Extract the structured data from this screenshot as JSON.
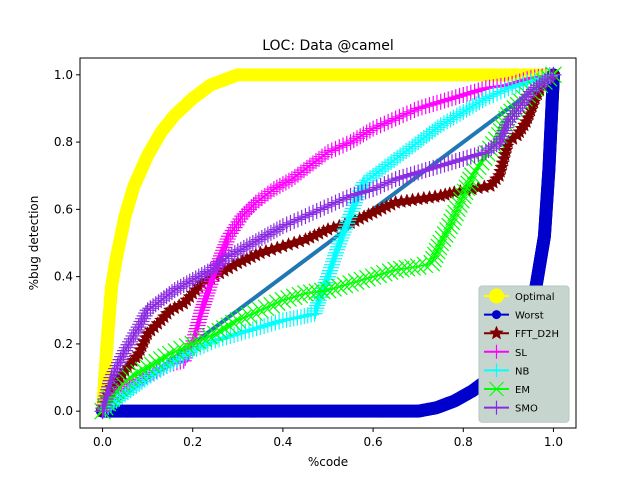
{
  "chart_data": {
    "type": "line",
    "title": "LOC: Data @camel",
    "xlabel": "%code",
    "ylabel": "%bug detection",
    "xlim": [
      -0.05,
      1.05
    ],
    "ylim": [
      -0.05,
      1.05
    ],
    "xticks": [
      0.0,
      0.2,
      0.4,
      0.6,
      0.8,
      1.0
    ],
    "xtick_labels": [
      "0.0",
      "0.2",
      "0.4",
      "0.6",
      "0.8",
      "1.0"
    ],
    "yticks": [
      0.0,
      0.2,
      0.4,
      0.6,
      0.8,
      1.0
    ],
    "ytick_labels": [
      "0.0",
      "0.2",
      "0.4",
      "0.6",
      "0.8",
      "1.0"
    ],
    "grid": false,
    "legend_position": "lower-right",
    "diagonal_line": {
      "color": "#1f77b4",
      "x": [
        0,
        1
      ],
      "y": [
        0,
        1
      ]
    },
    "series": [
      {
        "name": "Optimal",
        "color": "#ffff00",
        "marker": "circle",
        "x": [
          0,
          0.01,
          0.02,
          0.03,
          0.05,
          0.07,
          0.1,
          0.13,
          0.16,
          0.2,
          0.24,
          0.28,
          0.3,
          0.35,
          0.5,
          0.7,
          0.9,
          1.0
        ],
        "y": [
          0,
          0.2,
          0.37,
          0.45,
          0.58,
          0.67,
          0.76,
          0.83,
          0.88,
          0.93,
          0.97,
          0.99,
          1.0,
          1.0,
          1.0,
          1.0,
          1.0,
          1.0
        ]
      },
      {
        "name": "Worst",
        "color": "#0000cc",
        "marker": "circle",
        "x": [
          0,
          0.1,
          0.2,
          0.3,
          0.4,
          0.5,
          0.6,
          0.7,
          0.74,
          0.78,
          0.82,
          0.86,
          0.9,
          0.93,
          0.96,
          0.98,
          0.99,
          1.0
        ],
        "y": [
          0,
          0,
          0,
          0,
          0,
          0,
          0,
          0,
          0.01,
          0.03,
          0.06,
          0.1,
          0.16,
          0.24,
          0.36,
          0.52,
          0.72,
          1.0
        ]
      },
      {
        "name": "FFT_D2H",
        "color": "#800000",
        "marker": "star",
        "x": [
          0,
          0.02,
          0.05,
          0.08,
          0.1,
          0.13,
          0.15,
          0.18,
          0.2,
          0.22,
          0.26,
          0.3,
          0.35,
          0.4,
          0.45,
          0.5,
          0.55,
          0.6,
          0.65,
          0.7,
          0.75,
          0.78,
          0.82,
          0.86,
          0.88,
          0.9,
          0.92,
          0.94,
          0.96,
          0.98,
          1.0
        ],
        "y": [
          0.0,
          0.07,
          0.12,
          0.17,
          0.23,
          0.27,
          0.3,
          0.32,
          0.35,
          0.38,
          0.41,
          0.44,
          0.47,
          0.49,
          0.51,
          0.54,
          0.56,
          0.59,
          0.62,
          0.63,
          0.64,
          0.65,
          0.66,
          0.67,
          0.7,
          0.8,
          0.82,
          0.86,
          0.93,
          0.98,
          1.0
        ]
      },
      {
        "name": "SL",
        "color": "#ff00ff",
        "marker": "plus",
        "x": [
          0,
          0.03,
          0.06,
          0.09,
          0.12,
          0.15,
          0.18,
          0.2,
          0.22,
          0.25,
          0.28,
          0.31,
          0.34,
          0.38,
          0.42,
          0.46,
          0.5,
          0.55,
          0.6,
          0.65,
          0.7,
          0.75,
          0.8,
          0.85,
          0.9,
          0.95,
          1.0
        ],
        "y": [
          0,
          0.05,
          0.08,
          0.1,
          0.12,
          0.14,
          0.15,
          0.2,
          0.3,
          0.42,
          0.52,
          0.58,
          0.62,
          0.66,
          0.69,
          0.73,
          0.77,
          0.8,
          0.84,
          0.87,
          0.9,
          0.92,
          0.94,
          0.96,
          0.97,
          0.99,
          1.0
        ]
      },
      {
        "name": "NB",
        "color": "#00ffff",
        "marker": "plus",
        "x": [
          0,
          0.05,
          0.1,
          0.15,
          0.2,
          0.25,
          0.3,
          0.35,
          0.4,
          0.44,
          0.47,
          0.48,
          0.5,
          0.52,
          0.54,
          0.56,
          0.58,
          0.62,
          0.66,
          0.7,
          0.75,
          0.8,
          0.85,
          0.9,
          0.95,
          1.0
        ],
        "y": [
          0,
          0.05,
          0.1,
          0.14,
          0.18,
          0.21,
          0.23,
          0.25,
          0.27,
          0.28,
          0.29,
          0.33,
          0.4,
          0.48,
          0.55,
          0.62,
          0.68,
          0.72,
          0.76,
          0.8,
          0.85,
          0.89,
          0.93,
          0.96,
          0.98,
          1.0
        ]
      },
      {
        "name": "EM",
        "color": "#00ff00",
        "marker": "x",
        "x": [
          0,
          0.03,
          0.06,
          0.1,
          0.15,
          0.2,
          0.25,
          0.3,
          0.35,
          0.4,
          0.45,
          0.5,
          0.55,
          0.6,
          0.65,
          0.7,
          0.73,
          0.75,
          0.77,
          0.8,
          0.82,
          0.84,
          0.86,
          0.88,
          0.9,
          0.95,
          1.0
        ],
        "y": [
          0,
          0.06,
          0.1,
          0.13,
          0.17,
          0.2,
          0.23,
          0.27,
          0.3,
          0.33,
          0.35,
          0.36,
          0.38,
          0.4,
          0.42,
          0.43,
          0.44,
          0.5,
          0.55,
          0.64,
          0.7,
          0.74,
          0.78,
          0.82,
          0.88,
          0.95,
          1.0
        ]
      },
      {
        "name": "SMO",
        "color": "#8a2be2",
        "marker": "plus",
        "x": [
          0,
          0.02,
          0.05,
          0.08,
          0.1,
          0.13,
          0.16,
          0.2,
          0.24,
          0.28,
          0.32,
          0.36,
          0.4,
          0.45,
          0.5,
          0.55,
          0.6,
          0.65,
          0.7,
          0.75,
          0.8,
          0.85,
          0.88,
          0.9,
          0.95,
          1.0
        ],
        "y": [
          0,
          0.1,
          0.18,
          0.25,
          0.3,
          0.33,
          0.36,
          0.39,
          0.42,
          0.46,
          0.49,
          0.52,
          0.55,
          0.58,
          0.61,
          0.64,
          0.66,
          0.69,
          0.71,
          0.73,
          0.75,
          0.77,
          0.8,
          0.86,
          0.95,
          1.0
        ]
      }
    ]
  }
}
